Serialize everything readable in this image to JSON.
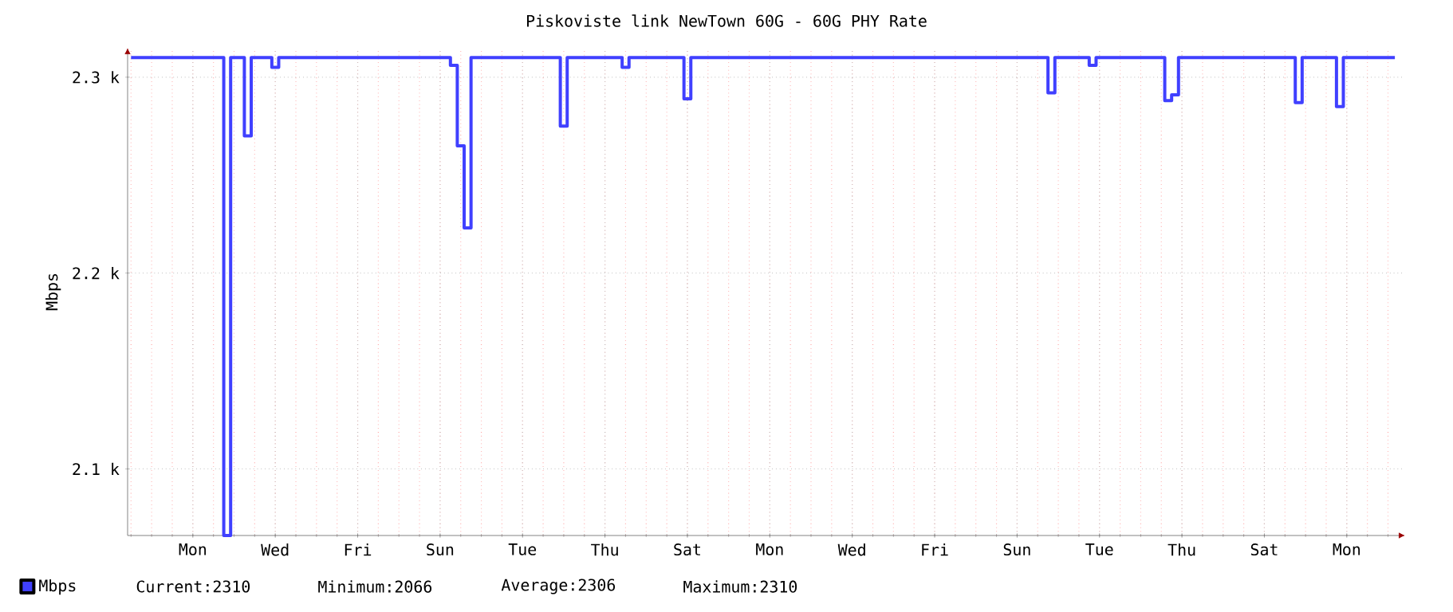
{
  "chart_data": {
    "type": "step",
    "title": "Piskoviste link NewTown  60G - 60G PHY Rate",
    "ylabel": "Mbps",
    "categories": [
      null,
      null,
      null,
      null,
      null,
      null,
      null,
      null,
      null,
      "Mon",
      null,
      null,
      null,
      null,
      null,
      null,
      null,
      null,
      null,
      null,
      null,
      "Wed",
      null,
      null,
      null,
      null,
      null,
      null,
      null,
      null,
      null,
      null,
      null,
      "Fri",
      null,
      null,
      null,
      null,
      null,
      null,
      null,
      null,
      null,
      null,
      null,
      "Sun",
      null,
      null,
      null,
      null,
      null,
      null,
      null,
      null,
      null,
      null,
      null,
      "Tue",
      null,
      null,
      null,
      null,
      null,
      null,
      null,
      null,
      null,
      null,
      null,
      "Thu",
      null,
      null,
      null,
      null,
      null,
      null,
      null,
      null,
      null,
      null,
      null,
      "Sat",
      null,
      null,
      null,
      null,
      null,
      null,
      null,
      null,
      null,
      null,
      null,
      "Mon",
      null,
      null,
      null,
      null,
      null,
      null,
      null,
      null,
      null,
      null,
      null,
      "Wed",
      null,
      null,
      null,
      null,
      null,
      null,
      null,
      null,
      null,
      null,
      null,
      "Fri",
      null,
      null,
      null,
      null,
      null,
      null,
      null,
      null,
      null,
      null,
      null,
      "Sun",
      null,
      null,
      null,
      null,
      null,
      null,
      null,
      null,
      null,
      null,
      null,
      "Tue",
      null,
      null,
      null,
      null,
      null,
      null,
      null,
      null,
      null,
      null,
      null,
      "Thu",
      null,
      null,
      null,
      null,
      null,
      null,
      null,
      null,
      null,
      null,
      null,
      "Sat",
      null,
      null,
      null,
      null,
      null,
      null,
      null,
      null,
      null,
      null,
      null,
      "Mon",
      null,
      null,
      null,
      null,
      null,
      null,
      null,
      null
    ],
    "ylim": [
      2066,
      2315
    ],
    "yticks": [
      {
        "value": 2100,
        "label": "2.1 k"
      },
      {
        "value": 2200,
        "label": "2.2 k"
      },
      {
        "value": 2300,
        "label": "2.3 k"
      }
    ],
    "grid": true,
    "legend": "bottom left",
    "series": [
      {
        "name": "Mbps",
        "color": "#4040ff",
        "values": [
          2310,
          2310,
          2310,
          2310,
          2310,
          2310,
          2310,
          2310,
          2310,
          2310,
          2310,
          2310,
          2310,
          2310,
          2066,
          2310,
          2310,
          2270,
          2310,
          2310,
          2310,
          2305,
          2310,
          2310,
          2310,
          2310,
          2310,
          2310,
          2310,
          2310,
          2310,
          2310,
          2310,
          2310,
          2310,
          2310,
          2310,
          2310,
          2310,
          2310,
          2310,
          2310,
          2310,
          2310,
          2310,
          2310,
          2310,
          2306,
          2265,
          2223,
          2310,
          2310,
          2310,
          2310,
          2310,
          2310,
          2310,
          2310,
          2310,
          2310,
          2310,
          2310,
          2310,
          2275,
          2310,
          2310,
          2310,
          2310,
          2310,
          2310,
          2310,
          2310,
          2305,
          2310,
          2310,
          2310,
          2310,
          2310,
          2310,
          2310,
          2310,
          2289,
          2310,
          2310,
          2310,
          2310,
          2310,
          2310,
          2310,
          2310,
          2310,
          2310,
          2310,
          2310,
          2310,
          2310,
          2310,
          2310,
          2310,
          2310,
          2310,
          2310,
          2310,
          2310,
          2310,
          2310,
          2310,
          2310,
          2310,
          2310,
          2310,
          2310,
          2310,
          2310,
          2310,
          2310,
          2310,
          2310,
          2310,
          2310,
          2310,
          2310,
          2310,
          2310,
          2310,
          2310,
          2310,
          2310,
          2310,
          2310,
          2310,
          2310,
          2310,
          2310,
          2292,
          2310,
          2310,
          2310,
          2310,
          2310,
          2306,
          2310,
          2310,
          2310,
          2310,
          2310,
          2310,
          2310,
          2310,
          2310,
          2310,
          2288,
          2291,
          2310,
          2310,
          2310,
          2310,
          2310,
          2310,
          2310,
          2310,
          2310,
          2310,
          2310,
          2310,
          2310,
          2310,
          2310,
          2310,
          2310,
          2287,
          2310,
          2310,
          2310,
          2310,
          2310,
          2285,
          2310,
          2310,
          2310,
          2310,
          2310,
          2310,
          2310,
          2310,
          null
        ]
      }
    ],
    "annotations": [
      "Current:2310",
      "Minimum:2066",
      "Average:2306",
      "Maximum:2310"
    ]
  }
}
